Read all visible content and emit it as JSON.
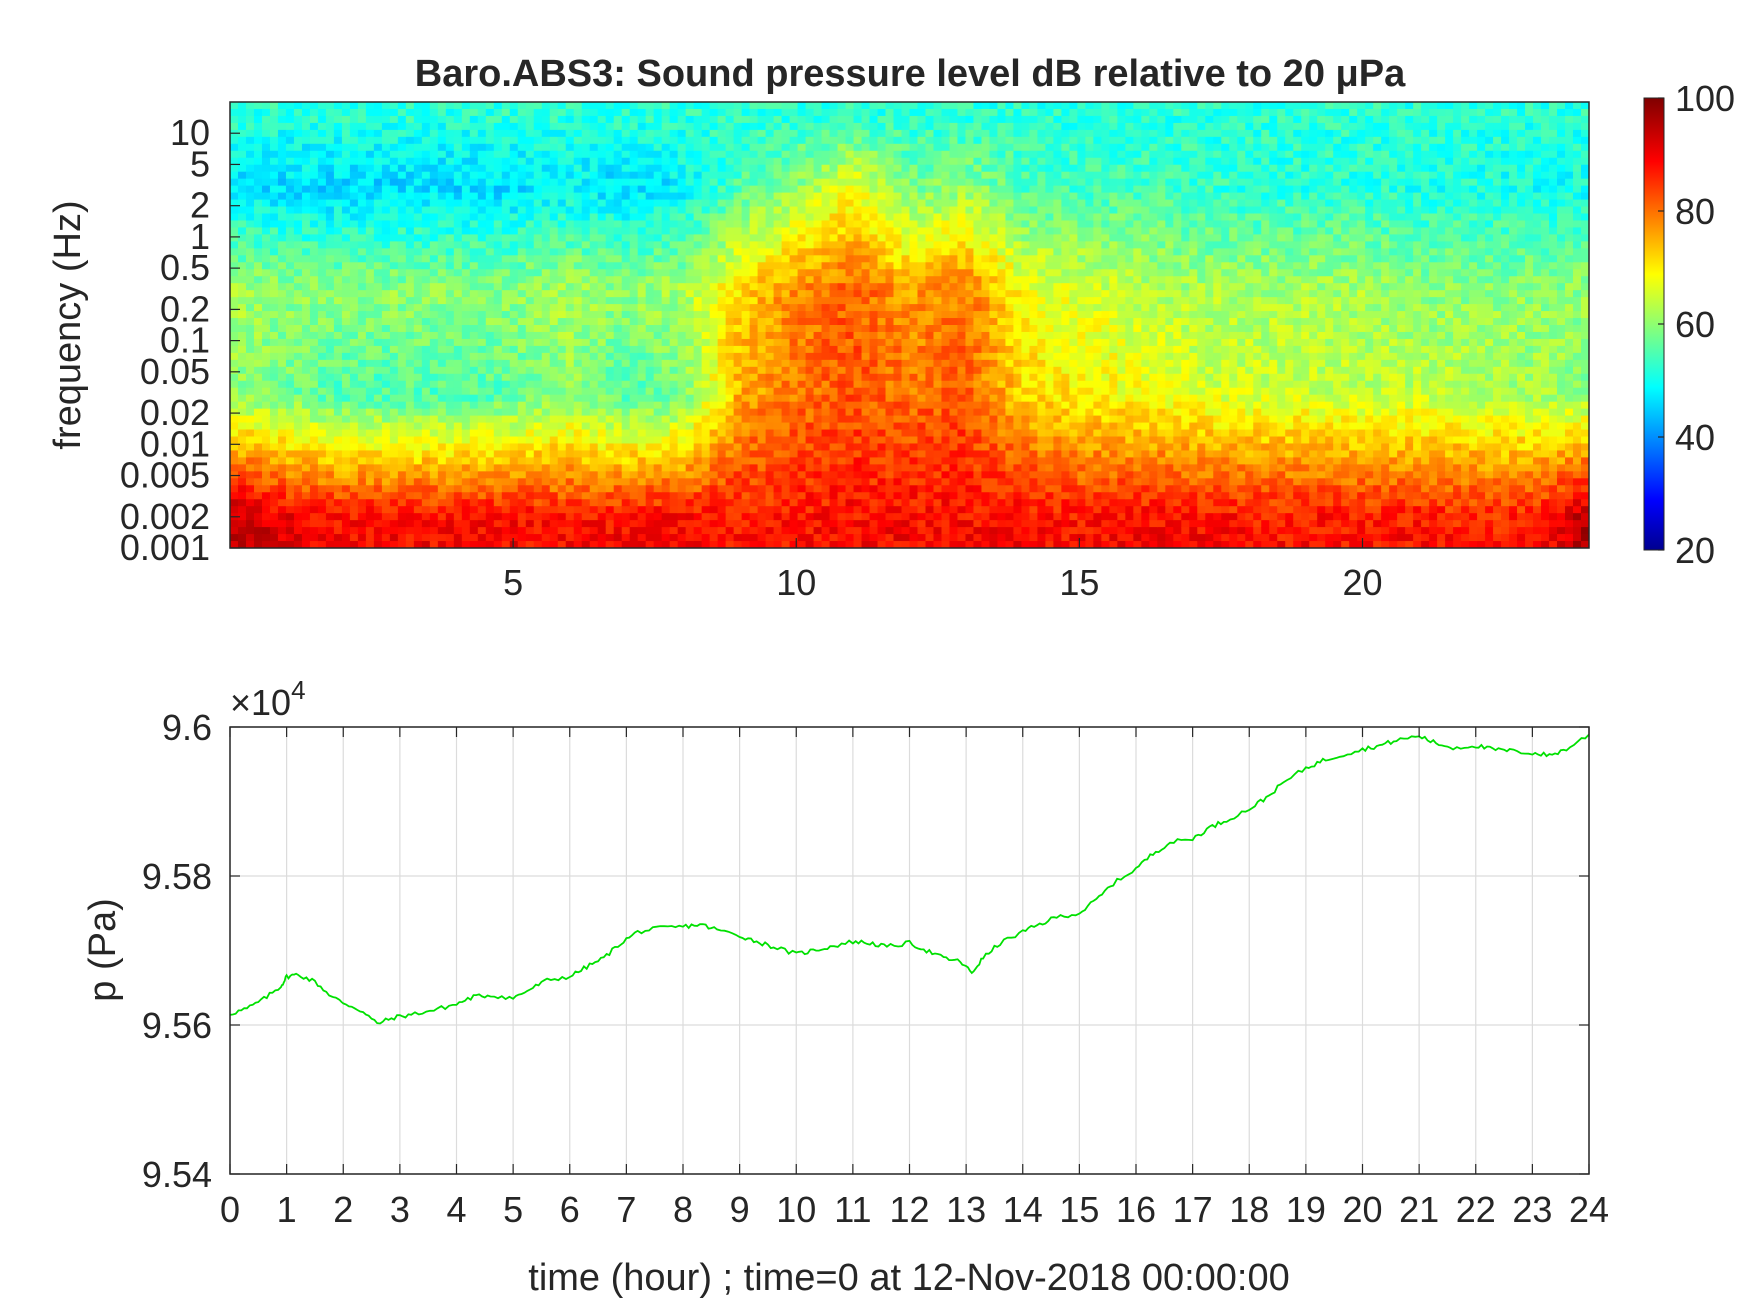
{
  "chart_data": [
    {
      "type": "heatmap",
      "title": "Baro.ABS3: Sound pressure level dB relative to 20 μPa",
      "ylabel": "frequency (Hz)",
      "xlabel": "",
      "x_unit": "hour",
      "xlim": [
        0,
        24
      ],
      "x_ticks": [
        "5",
        "10",
        "15",
        "20"
      ],
      "y_scale": "log",
      "ylim_hz": [
        0.001,
        20
      ],
      "y_ticks": [
        "0.001",
        "0.002",
        "0.005",
        "0.01",
        "0.02",
        "0.05",
        "0.1",
        "0.2",
        "0.5",
        "1",
        "2",
        "5",
        "10"
      ],
      "colorbar": {
        "colormap": "jet",
        "range": [
          20,
          100
        ],
        "ticks": [
          "20",
          "40",
          "60",
          "80",
          "100"
        ],
        "colors": [
          "#00008f",
          "#0000ff",
          "#00ffff",
          "#ffff00",
          "#ff0000",
          "#800000"
        ]
      },
      "approx_levels_db": {
        "note_x_hours": [
          0,
          1,
          2,
          3,
          4,
          5,
          6,
          7,
          8,
          9,
          10,
          11,
          12,
          13,
          14,
          15,
          16,
          17,
          18,
          19,
          20,
          21,
          22,
          23,
          24
        ],
        "band_0.001_0.005_Hz": [
          95,
          90,
          88,
          88,
          88,
          88,
          87,
          88,
          88,
          87,
          87,
          88,
          88,
          88,
          88,
          87,
          88,
          88,
          87,
          87,
          87,
          87,
          86,
          86,
          95
        ],
        "band_0.01_0.1_Hz": [
          60,
          58,
          55,
          55,
          55,
          56,
          60,
          55,
          58,
          75,
          80,
          82,
          80,
          82,
          72,
          70,
          68,
          66,
          65,
          65,
          64,
          64,
          63,
          62,
          60
        ],
        "band_0.1_1_Hz": [
          62,
          60,
          60,
          60,
          60,
          60,
          62,
          60,
          62,
          72,
          78,
          82,
          76,
          80,
          68,
          66,
          64,
          62,
          62,
          62,
          62,
          60,
          60,
          60,
          60
        ],
        "band_1_10_Hz": [
          47,
          46,
          46,
          46,
          46,
          46,
          48,
          46,
          48,
          55,
          60,
          68,
          58,
          60,
          55,
          54,
          54,
          53,
          52,
          52,
          52,
          51,
          51,
          50,
          50
        ]
      }
    },
    {
      "type": "line",
      "title": "",
      "xlabel": "time (hour) ; time=0 at 12-Nov-2018 00:00:00",
      "ylabel": "p (Pa)",
      "y_multiplier": "×10",
      "y_multiplier_exponent": "4",
      "xlim": [
        0,
        24
      ],
      "ylim": [
        95400,
        96000
      ],
      "x_ticks": [
        "0",
        "1",
        "2",
        "3",
        "4",
        "5",
        "6",
        "7",
        "8",
        "9",
        "10",
        "11",
        "12",
        "13",
        "14",
        "15",
        "16",
        "17",
        "18",
        "19",
        "20",
        "21",
        "22",
        "23",
        "24"
      ],
      "y_ticks": [
        "9.54",
        "9.56",
        "9.58",
        "9.6"
      ],
      "grid": true,
      "line_color": "#00e000",
      "series": [
        {
          "x": [
            0,
            0.3,
            0.6,
            0.9,
            1.0,
            1.2,
            1.5,
            1.8,
            2.0,
            2.3,
            2.6,
            2.9,
            3.2,
            3.6,
            4.0,
            4.3,
            4.6,
            5.0,
            5.3,
            5.6,
            6.0,
            6.3,
            6.6,
            6.9,
            7.2,
            7.6,
            8.0,
            8.3,
            8.6,
            9.0,
            9.3,
            9.6,
            10.0,
            10.3,
            10.6,
            11.0,
            11.3,
            11.6,
            12.0,
            12.3,
            12.6,
            12.9,
            13.1,
            13.3,
            13.6,
            14.0,
            14.3,
            14.6,
            15.0,
            15.3,
            15.6,
            16.0,
            16.3,
            16.6,
            17.0,
            17.3,
            17.6,
            18.0,
            18.3,
            18.6,
            19.0,
            19.3,
            19.6,
            20.0,
            20.3,
            20.6,
            21.0,
            21.3,
            21.6,
            22.0,
            22.3,
            22.6,
            23.0,
            23.3,
            23.6,
            24.0
          ],
          "y": [
            95615,
            95622,
            95635,
            95652,
            95665,
            95668,
            95658,
            95638,
            95630,
            95620,
            95602,
            95610,
            95614,
            95620,
            95628,
            95638,
            95640,
            95636,
            95648,
            95660,
            95665,
            95678,
            95690,
            95710,
            95725,
            95730,
            95732,
            95735,
            95728,
            95720,
            95712,
            95705,
            95695,
            95700,
            95705,
            95712,
            95710,
            95705,
            95710,
            95700,
            95690,
            95685,
            95670,
            95690,
            95710,
            95725,
            95735,
            95745,
            95750,
            95768,
            95790,
            95810,
            95830,
            95845,
            95850,
            95865,
            95875,
            95890,
            95905,
            95925,
            95945,
            95955,
            95962,
            95970,
            95975,
            95982,
            95988,
            95978,
            95972,
            95975,
            95970,
            95968,
            95965,
            95962,
            95970,
            95990
          ]
        }
      ]
    }
  ]
}
